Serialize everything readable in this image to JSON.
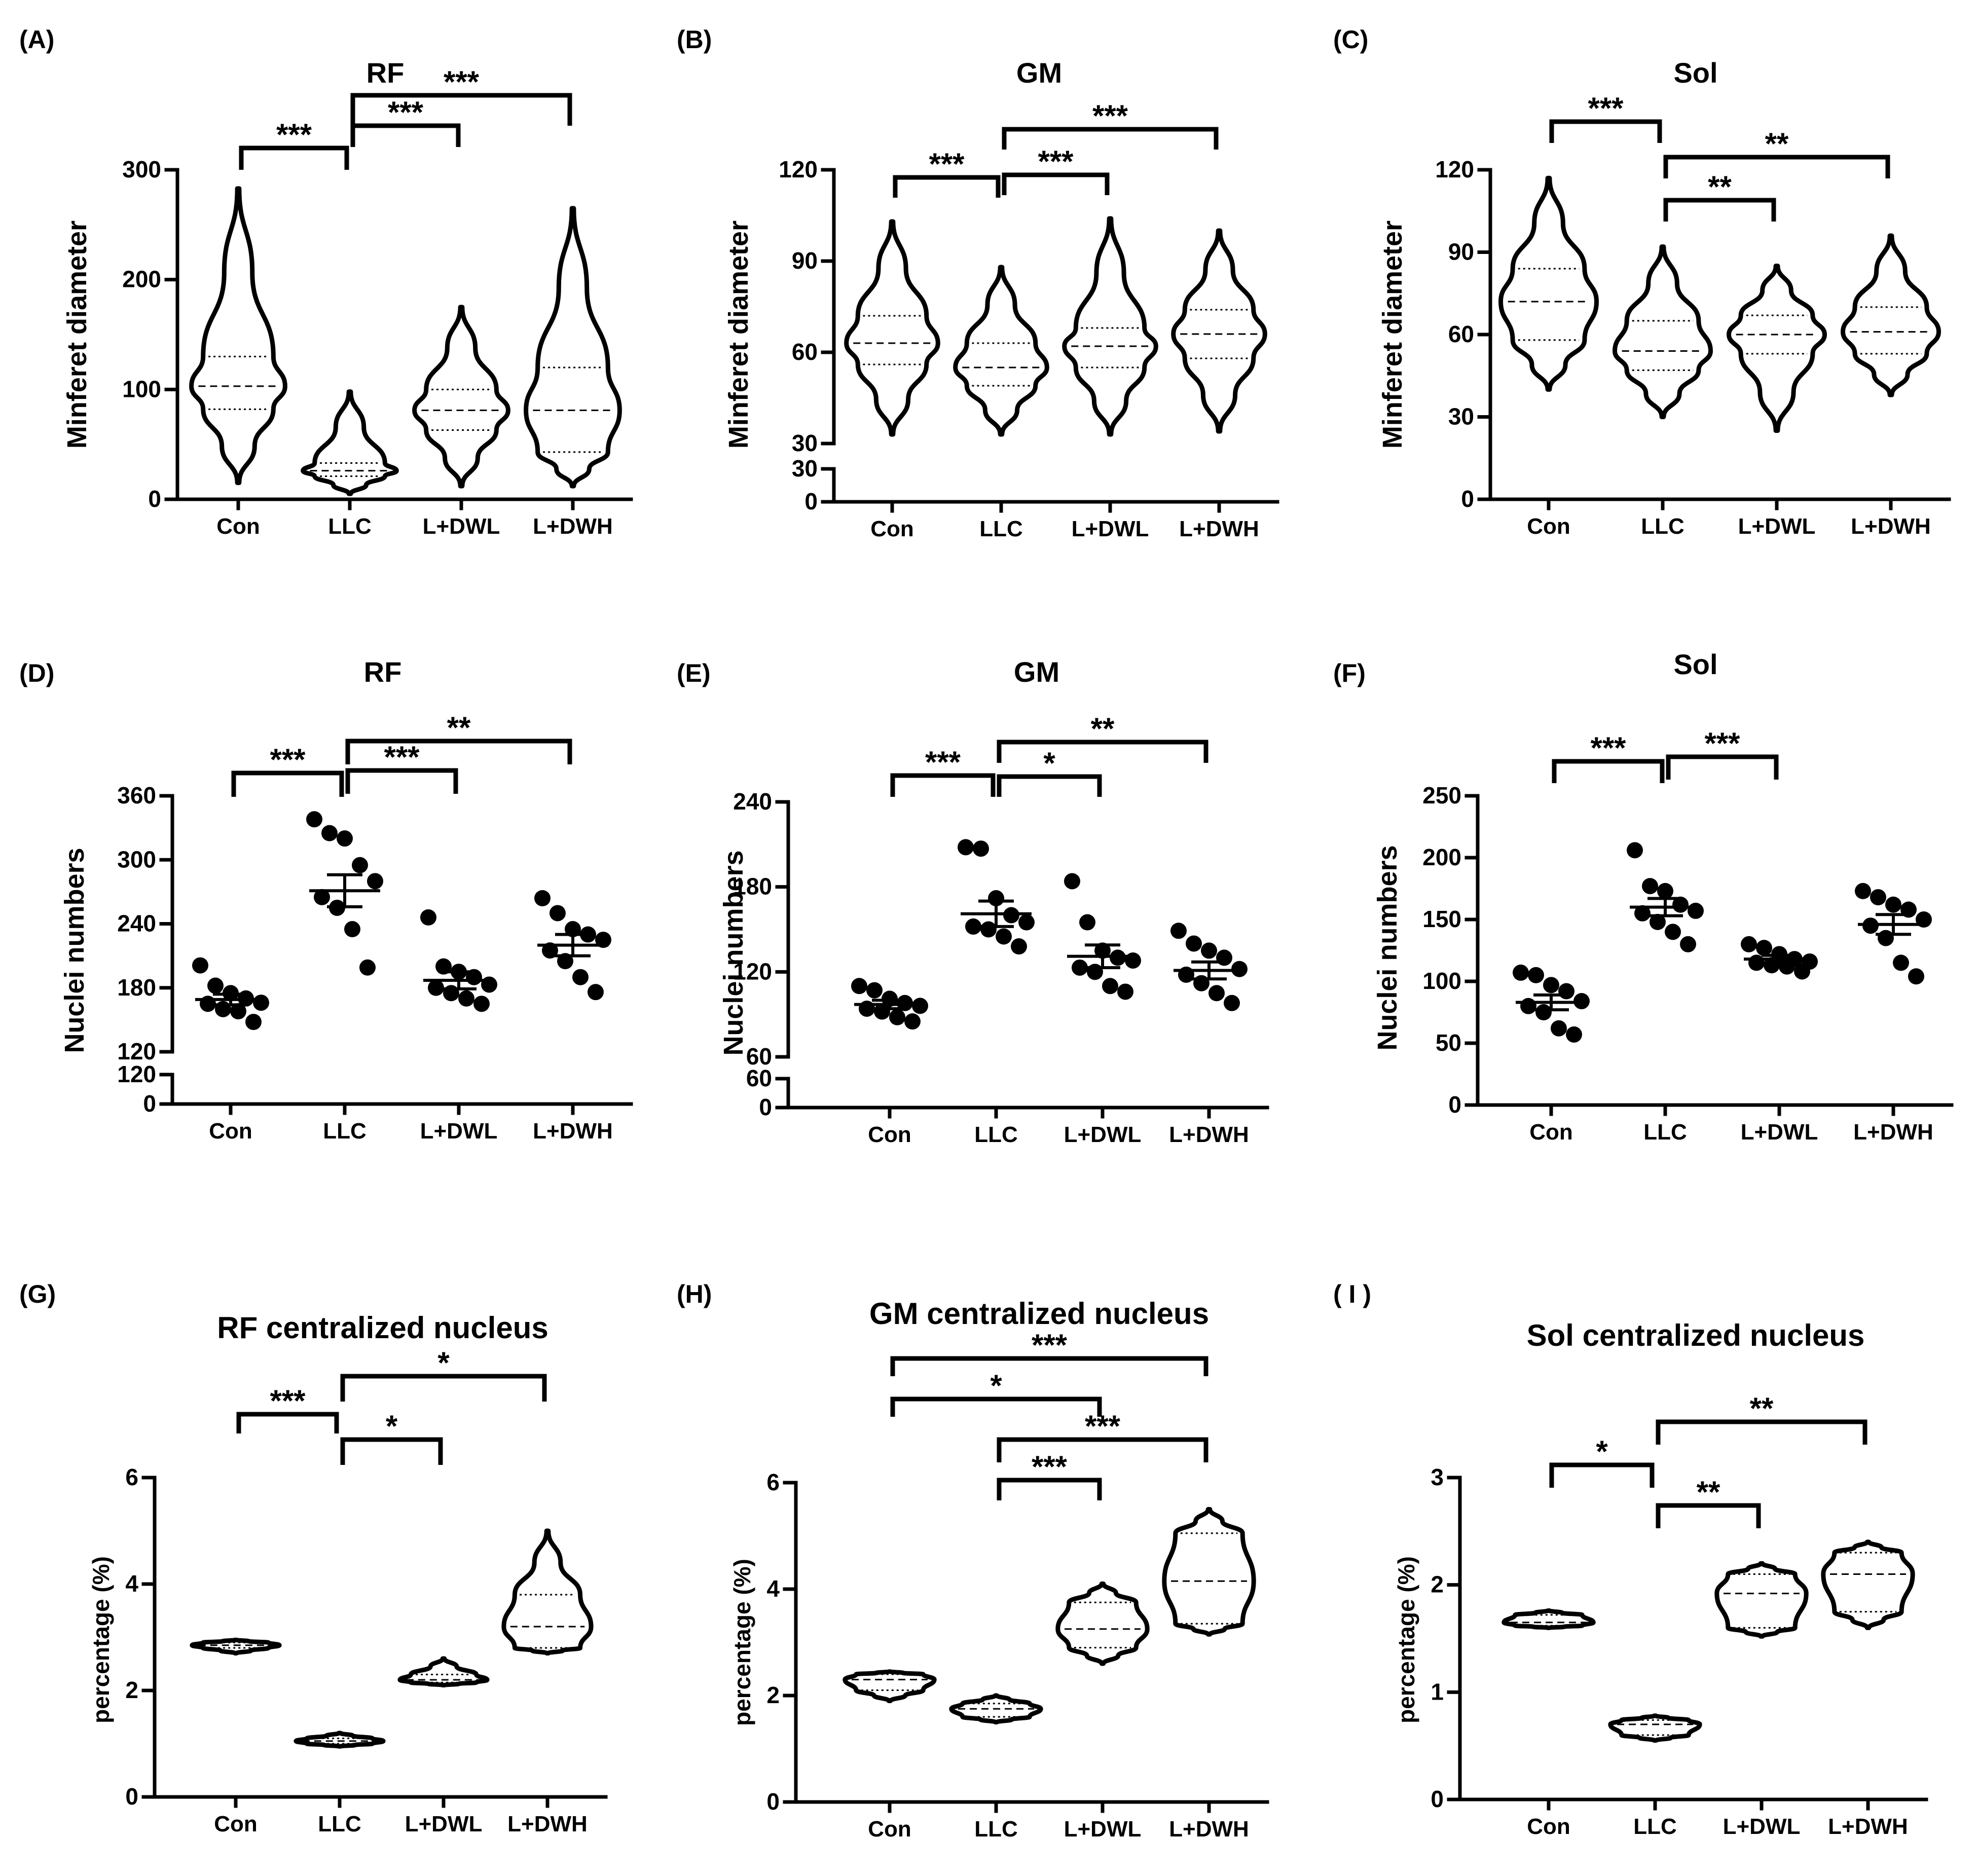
{
  "chart_data": [
    {
      "panel_label": "(A)",
      "type": "violin",
      "title": "RF",
      "ylabel": "Minferet diameter",
      "xlabel": "",
      "categories": [
        "Con",
        "LLC",
        "L+DWL",
        "L+DWH"
      ],
      "ylim": [
        0,
        300
      ],
      "yticks": [
        "0",
        "100",
        "200",
        "300"
      ],
      "axis_break": false,
      "series": [
        {
          "name": "Con",
          "min": 15,
          "q1": 82,
          "median": 103,
          "q3": 130,
          "max": 283
        },
        {
          "name": "LLC",
          "min": 5,
          "q1": 21,
          "median": 26,
          "q3": 33,
          "max": 98
        },
        {
          "name": "L+DWL",
          "min": 12,
          "q1": 63,
          "median": 81,
          "q3": 100,
          "max": 175
        },
        {
          "name": "L+DWH",
          "min": 12,
          "q1": 43,
          "median": 81,
          "q3": 120,
          "max": 265
        }
      ],
      "significance": [
        {
          "from": "Con",
          "to": "LLC",
          "label": "***"
        },
        {
          "from": "LLC",
          "to": "L+DWL",
          "label": "***"
        },
        {
          "from": "LLC",
          "to": "L+DWH",
          "label": "***"
        }
      ]
    },
    {
      "panel_label": "(B)",
      "type": "violin",
      "title": "GM",
      "ylabel": "Minferet diameter",
      "xlabel": "",
      "categories": [
        "Con",
        "LLC",
        "L+DWL",
        "L+DWH"
      ],
      "ylim": [
        30,
        120
      ],
      "yticks": [
        "30",
        "60",
        "90",
        "120"
      ],
      "axis_break": true,
      "break_labels": [
        "0",
        "30"
      ],
      "series": [
        {
          "name": "Con",
          "min": 33,
          "q1": 56,
          "median": 63,
          "q3": 72,
          "max": 103
        },
        {
          "name": "LLC",
          "min": 33,
          "q1": 49,
          "median": 55,
          "q3": 63,
          "max": 88
        },
        {
          "name": "L+DWL",
          "min": 33,
          "q1": 55,
          "median": 62,
          "q3": 68,
          "max": 104
        },
        {
          "name": "L+DWH",
          "min": 34,
          "q1": 58,
          "median": 66,
          "q3": 74,
          "max": 100
        }
      ],
      "significance": [
        {
          "from": "Con",
          "to": "LLC",
          "label": "***"
        },
        {
          "from": "LLC",
          "to": "L+DWL",
          "label": "***"
        },
        {
          "from": "LLC",
          "to": "L+DWH",
          "label": "***"
        }
      ]
    },
    {
      "panel_label": "(C)",
      "type": "violin",
      "title": "Sol",
      "ylabel": "Minferet diameter",
      "xlabel": "",
      "categories": [
        "Con",
        "LLC",
        "L+DWL",
        "L+DWH"
      ],
      "ylim": [
        0,
        120
      ],
      "yticks": [
        "0",
        "30",
        "60",
        "90",
        "120"
      ],
      "axis_break": false,
      "series": [
        {
          "name": "Con",
          "min": 40,
          "q1": 58,
          "median": 72,
          "q3": 84,
          "max": 117
        },
        {
          "name": "LLC",
          "min": 30,
          "q1": 47,
          "median": 54,
          "q3": 65,
          "max": 92
        },
        {
          "name": "L+DWL",
          "min": 25,
          "q1": 53,
          "median": 60,
          "q3": 67,
          "max": 85
        },
        {
          "name": "L+DWH",
          "min": 38,
          "q1": 53,
          "median": 61,
          "q3": 70,
          "max": 96
        }
      ],
      "significance": [
        {
          "from": "Con",
          "to": "LLC",
          "label": "***"
        },
        {
          "from": "LLC",
          "to": "L+DWL",
          "label": "**"
        },
        {
          "from": "LLC",
          "to": "L+DWH",
          "label": "**"
        }
      ]
    },
    {
      "panel_label": "(D)",
      "type": "scatter",
      "title": "RF",
      "ylabel": "Nuclei numbers",
      "xlabel": "",
      "categories": [
        "Con",
        "LLC",
        "L+DWL",
        "L+DWH"
      ],
      "ylim": [
        120,
        360
      ],
      "yticks": [
        "120",
        "180",
        "240",
        "300",
        "360"
      ],
      "axis_break": true,
      "break_labels": [
        "0",
        "120"
      ],
      "series": [
        {
          "name": "Con",
          "values": [
            201,
            182,
            175,
            170,
            166,
            165,
            160,
            158,
            148
          ],
          "mean": 169,
          "sem": 5
        },
        {
          "name": "LLC",
          "values": [
            338,
            325,
            320,
            295,
            280,
            265,
            255,
            235,
            199
          ],
          "mean": 271,
          "sem": 15
        },
        {
          "name": "L+DWL",
          "values": [
            246,
            200,
            195,
            190,
            183,
            180,
            175,
            170,
            165
          ],
          "mean": 187,
          "sem": 8
        },
        {
          "name": "L+DWH",
          "values": [
            264,
            250,
            235,
            230,
            225,
            215,
            205,
            190,
            176
          ],
          "mean": 220,
          "sem": 10
        }
      ],
      "significance": [
        {
          "from": "Con",
          "to": "LLC",
          "label": "***"
        },
        {
          "from": "LLC",
          "to": "L+DWL",
          "label": "***"
        },
        {
          "from": "LLC",
          "to": "L+DWH",
          "label": "**"
        }
      ]
    },
    {
      "panel_label": "(E)",
      "type": "scatter",
      "title": "GM",
      "ylabel": "Nuclei numbers",
      "xlabel": "",
      "categories": [
        "Con",
        "LLC",
        "L+DWL",
        "L+DWH"
      ],
      "ylim": [
        60,
        240
      ],
      "yticks": [
        "60",
        "120",
        "180",
        "240"
      ],
      "axis_break": true,
      "break_labels": [
        "0",
        "60"
      ],
      "series": [
        {
          "name": "Con",
          "values": [
            110,
            107,
            101,
            98,
            96,
            94,
            92,
            88,
            85
          ],
          "mean": 97,
          "sem": 3
        },
        {
          "name": "LLC",
          "values": [
            208,
            207,
            172,
            160,
            155,
            152,
            150,
            145,
            138
          ],
          "mean": 161,
          "sem": 9
        },
        {
          "name": "L+DWL",
          "values": [
            184,
            155,
            135,
            130,
            128,
            123,
            120,
            110,
            106
          ],
          "mean": 131,
          "sem": 8
        },
        {
          "name": "L+DWH",
          "values": [
            149,
            140,
            135,
            130,
            122,
            118,
            112,
            105,
            98
          ],
          "mean": 121,
          "sem": 6
        }
      ],
      "significance": [
        {
          "from": "Con",
          "to": "LLC",
          "label": "***"
        },
        {
          "from": "LLC",
          "to": "L+DWL",
          "label": "*"
        },
        {
          "from": "LLC",
          "to": "L+DWH",
          "label": "**"
        }
      ]
    },
    {
      "panel_label": "(F)",
      "type": "scatter",
      "title": "Sol",
      "ylabel": "Nuclei numbers",
      "xlabel": "",
      "categories": [
        "Con",
        "LLC",
        "L+DWL",
        "L+DWH"
      ],
      "ylim": [
        0,
        250
      ],
      "yticks": [
        "0",
        "50",
        "100",
        "150",
        "200",
        "250"
      ],
      "axis_break": false,
      "series": [
        {
          "name": "Con",
          "values": [
            107,
            105,
            97,
            92,
            84,
            80,
            75,
            62,
            57
          ],
          "mean": 83,
          "sem": 6
        },
        {
          "name": "LLC",
          "values": [
            206,
            177,
            173,
            162,
            157,
            155,
            148,
            140,
            130
          ],
          "mean": 160,
          "sem": 7
        },
        {
          "name": "L+DWL",
          "values": [
            130,
            127,
            122,
            118,
            116,
            115,
            113,
            112,
            108
          ],
          "mean": 118,
          "sem": 3
        },
        {
          "name": "L+DWH",
          "values": [
            173,
            168,
            162,
            158,
            150,
            145,
            135,
            115,
            104
          ],
          "mean": 146,
          "sem": 8
        }
      ],
      "significance": [
        {
          "from": "Con",
          "to": "LLC",
          "label": "***"
        },
        {
          "from": "LLC",
          "to": "L+DWL",
          "label": "***"
        }
      ]
    },
    {
      "panel_label": "(G)",
      "type": "violin",
      "title": "RF centralized nucleus",
      "ylabel": "percentage (%)",
      "xlabel": "",
      "categories": [
        "Con",
        "LLC",
        "L+DWL",
        "L+DWH"
      ],
      "ylim": [
        0,
        6
      ],
      "yticks": [
        "0",
        "2",
        "4",
        "6"
      ],
      "axis_break": false,
      "series": [
        {
          "name": "Con",
          "min": 2.7,
          "q1": 2.8,
          "median": 2.85,
          "q3": 2.9,
          "max": 2.95
        },
        {
          "name": "LLC",
          "min": 0.95,
          "q1": 1.0,
          "median": 1.05,
          "q3": 1.1,
          "max": 1.2
        },
        {
          "name": "L+DWL",
          "min": 2.1,
          "q1": 2.15,
          "median": 2.2,
          "q3": 2.3,
          "max": 2.6
        },
        {
          "name": "L+DWH",
          "min": 2.7,
          "q1": 2.8,
          "median": 3.2,
          "q3": 3.8,
          "max": 5.0
        }
      ],
      "significance": [
        {
          "from": "Con",
          "to": "LLC",
          "label": "***"
        },
        {
          "from": "LLC",
          "to": "L+DWL",
          "label": "*"
        },
        {
          "from": "LLC",
          "to": "L+DWH",
          "label": "*"
        }
      ]
    },
    {
      "panel_label": "(H)",
      "type": "violin",
      "title": "GM centralized nucleus",
      "ylabel": "percentage (%)",
      "xlabel": "",
      "categories": [
        "Con",
        "LLC",
        "L+DWL",
        "L+DWH"
      ],
      "ylim": [
        0,
        6
      ],
      "yticks": [
        "0",
        "2",
        "4",
        "6"
      ],
      "axis_break": false,
      "series": [
        {
          "name": "Con",
          "min": 1.9,
          "q1": 2.1,
          "median": 2.3,
          "q3": 2.4,
          "max": 2.45
        },
        {
          "name": "LLC",
          "min": 1.5,
          "q1": 1.6,
          "median": 1.75,
          "q3": 1.85,
          "max": 2.0
        },
        {
          "name": "L+DWL",
          "min": 2.6,
          "q1": 2.9,
          "median": 3.25,
          "q3": 3.75,
          "max": 4.1
        },
        {
          "name": "L+DWH",
          "min": 3.15,
          "q1": 3.35,
          "median": 4.15,
          "q3": 5.05,
          "max": 5.5
        }
      ],
      "significance": [
        {
          "from": "Con",
          "to": "L+DWH",
          "label": "***"
        },
        {
          "from": "Con",
          "to": "L+DWL",
          "label": "*"
        },
        {
          "from": "LLC",
          "to": "L+DWH",
          "label": "***"
        },
        {
          "from": "LLC",
          "to": "L+DWL",
          "label": "***"
        }
      ]
    },
    {
      "panel_label": "( I )",
      "type": "violin",
      "title": "Sol centralized nucleus",
      "ylabel": "percentage (%)",
      "xlabel": "",
      "categories": [
        "Con",
        "LLC",
        "L+DWL",
        "L+DWH"
      ],
      "ylim": [
        0,
        3
      ],
      "yticks": [
        "0",
        "1",
        "2",
        "3"
      ],
      "axis_break": false,
      "series": [
        {
          "name": "Con",
          "min": 1.6,
          "q1": 1.62,
          "median": 1.65,
          "q3": 1.72,
          "max": 1.76
        },
        {
          "name": "LLC",
          "min": 0.55,
          "q1": 0.6,
          "median": 0.7,
          "q3": 0.74,
          "max": 0.78
        },
        {
          "name": "L+DWL",
          "min": 1.52,
          "q1": 1.6,
          "median": 1.92,
          "q3": 2.1,
          "max": 2.2
        },
        {
          "name": "L+DWH",
          "min": 1.6,
          "q1": 1.75,
          "median": 2.1,
          "q3": 2.3,
          "max": 2.4
        }
      ],
      "significance": [
        {
          "from": "Con",
          "to": "LLC",
          "label": "*"
        },
        {
          "from": "LLC",
          "to": "L+DWL",
          "label": "**"
        },
        {
          "from": "LLC",
          "to": "L+DWH",
          "label": "**"
        }
      ]
    }
  ]
}
